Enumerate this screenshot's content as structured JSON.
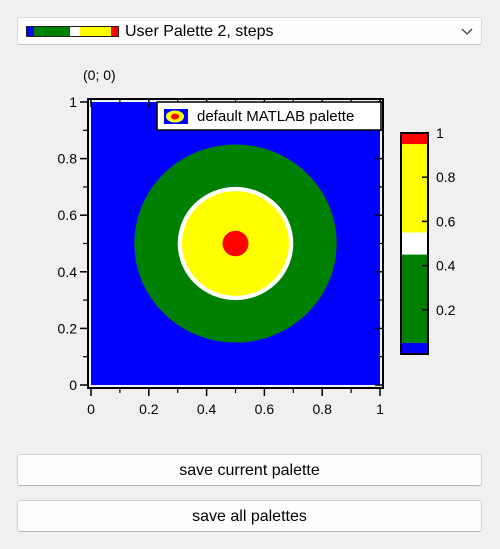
{
  "palette_select": {
    "selected": "User Palette 2, steps",
    "swatch_colors": [
      "#0000ff",
      "#008000",
      "#ffffff",
      "#ffff00",
      "#ff0000"
    ]
  },
  "coordinate_readout": "(0; 0)",
  "legend": {
    "label": "default MATLAB palette",
    "icon": "palette-icon"
  },
  "chart_data": {
    "type": "heatmap",
    "x_ticks": [
      "0",
      "0.2",
      "0.4",
      "0.6",
      "0.8",
      "1"
    ],
    "y_ticks": [
      "0",
      "0.2",
      "0.4",
      "0.6",
      "0.8",
      "1"
    ],
    "xlim": [
      0,
      1
    ],
    "ylim": [
      0,
      1
    ],
    "colorbar": {
      "ticks": [
        "0.2",
        "0.4",
        "0.6",
        "0.8",
        "1"
      ],
      "range": [
        0,
        1
      ],
      "steps": [
        {
          "from": 0.0,
          "to": 0.05,
          "color": "#0000ff"
        },
        {
          "from": 0.05,
          "to": 0.45,
          "color": "#008000"
        },
        {
          "from": 0.45,
          "to": 0.55,
          "color": "#ffffff"
        },
        {
          "from": 0.55,
          "to": 0.95,
          "color": "#ffff00"
        },
        {
          "from": 0.95,
          "to": 1.0,
          "color": "#ff0000"
        }
      ]
    },
    "regions": [
      {
        "level": "outer",
        "color": "#0000ff"
      },
      {
        "level": "ring",
        "color": "#008000",
        "radius": 0.35
      },
      {
        "level": "band",
        "color": "#ffffff",
        "radius": 0.2
      },
      {
        "level": "inner",
        "color": "#ffff00",
        "radius": 0.185
      },
      {
        "level": "center",
        "color": "#ff0000",
        "radius": 0.045
      }
    ],
    "center": [
      0.5,
      0.5
    ]
  },
  "buttons": {
    "save_current": "save current palette",
    "save_all": "save all palettes"
  }
}
